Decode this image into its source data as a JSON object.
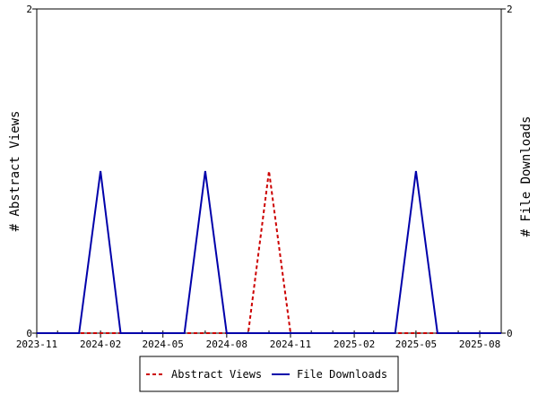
{
  "chart_data": {
    "type": "line",
    "x_type": "date",
    "x": [
      "2023-11-01",
      "2023-12-01",
      "2024-01-01",
      "2024-02-01",
      "2024-03-01",
      "2024-04-01",
      "2024-05-01",
      "2024-06-01",
      "2024-07-01",
      "2024-08-01",
      "2024-09-01",
      "2024-10-01",
      "2024-11-01",
      "2024-12-01",
      "2025-01-01",
      "2025-02-01",
      "2025-03-01",
      "2025-04-01",
      "2025-05-01",
      "2025-06-01",
      "2025-07-01",
      "2025-08-01",
      "2025-09-01"
    ],
    "xlim": [
      "2023-11-01",
      "2025-09-01"
    ],
    "xticks": [
      "2023-11",
      "2024-02",
      "2024-05",
      "2024-08",
      "2024-11",
      "2025-02",
      "2025-05",
      "2025-08"
    ],
    "y_left": {
      "label": "# Abstract Views",
      "ylim": [
        0,
        2
      ],
      "ticks": [
        "0",
        "2"
      ]
    },
    "y_right": {
      "label": "# File Downloads",
      "ylim": [
        0,
        2
      ],
      "ticks": [
        "0",
        "2"
      ]
    },
    "grid": false,
    "legend_position": "bottom",
    "series": [
      {
        "name": "Abstract Views",
        "axis": "left",
        "color": "#cc0000",
        "dash": "dashed",
        "values": [
          0,
          0,
          0,
          0,
          0,
          0,
          0,
          0,
          0,
          0,
          0,
          1,
          0,
          0,
          0,
          0,
          0,
          0,
          0,
          0,
          0,
          0,
          0
        ]
      },
      {
        "name": "File Downloads",
        "axis": "right",
        "color": "#0000aa",
        "dash": "solid",
        "values": [
          0,
          0,
          0,
          1,
          0,
          0,
          0,
          0,
          1,
          0,
          0,
          0,
          0,
          0,
          0,
          0,
          0,
          0,
          1,
          0,
          0,
          0,
          0
        ]
      }
    ]
  }
}
